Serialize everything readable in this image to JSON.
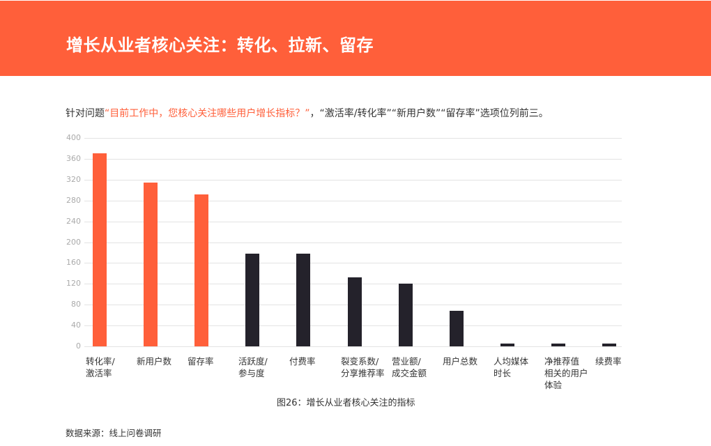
{
  "header": {
    "title": "增长从业者核心关注：转化、拉新、留存",
    "background": "#FF5F3A"
  },
  "subtitle": {
    "prefix": "针对问题",
    "highlight": "“目前工作中，您核心关注哪些用户增长指标？”",
    "suffix": "，“激活率/转化率”“新用户数”“留存率”选项位列前三。"
  },
  "chart_data": {
    "type": "bar",
    "title": "图26：增长从业者核心关注的指标",
    "xlabel": "",
    "ylabel": "",
    "ylim": [
      0,
      400
    ],
    "yticks": [
      0,
      40,
      80,
      120,
      160,
      200,
      240,
      280,
      320,
      360,
      400
    ],
    "grid": true,
    "legend": null,
    "categories": [
      "转化率/\n激活率",
      "新用户数",
      "留存率",
      "活跃度/\n参与度",
      "付费率",
      "裂变系数/\n分享推荐率",
      "营业额/\n成交金额",
      "用户总数",
      "人均媒体\n时长",
      "净推荐值\n相关的用户\n体验",
      "续费率"
    ],
    "values": [
      370,
      315,
      292,
      178,
      178,
      132,
      120,
      68,
      6,
      6,
      6
    ],
    "highlight_color": "#FF5F3A",
    "default_color": "#24222B",
    "highlighted_indices": [
      0,
      1,
      2
    ]
  },
  "caption": "图26：增长从业者核心关注的指标",
  "source": "数据来源：线上问卷调研"
}
